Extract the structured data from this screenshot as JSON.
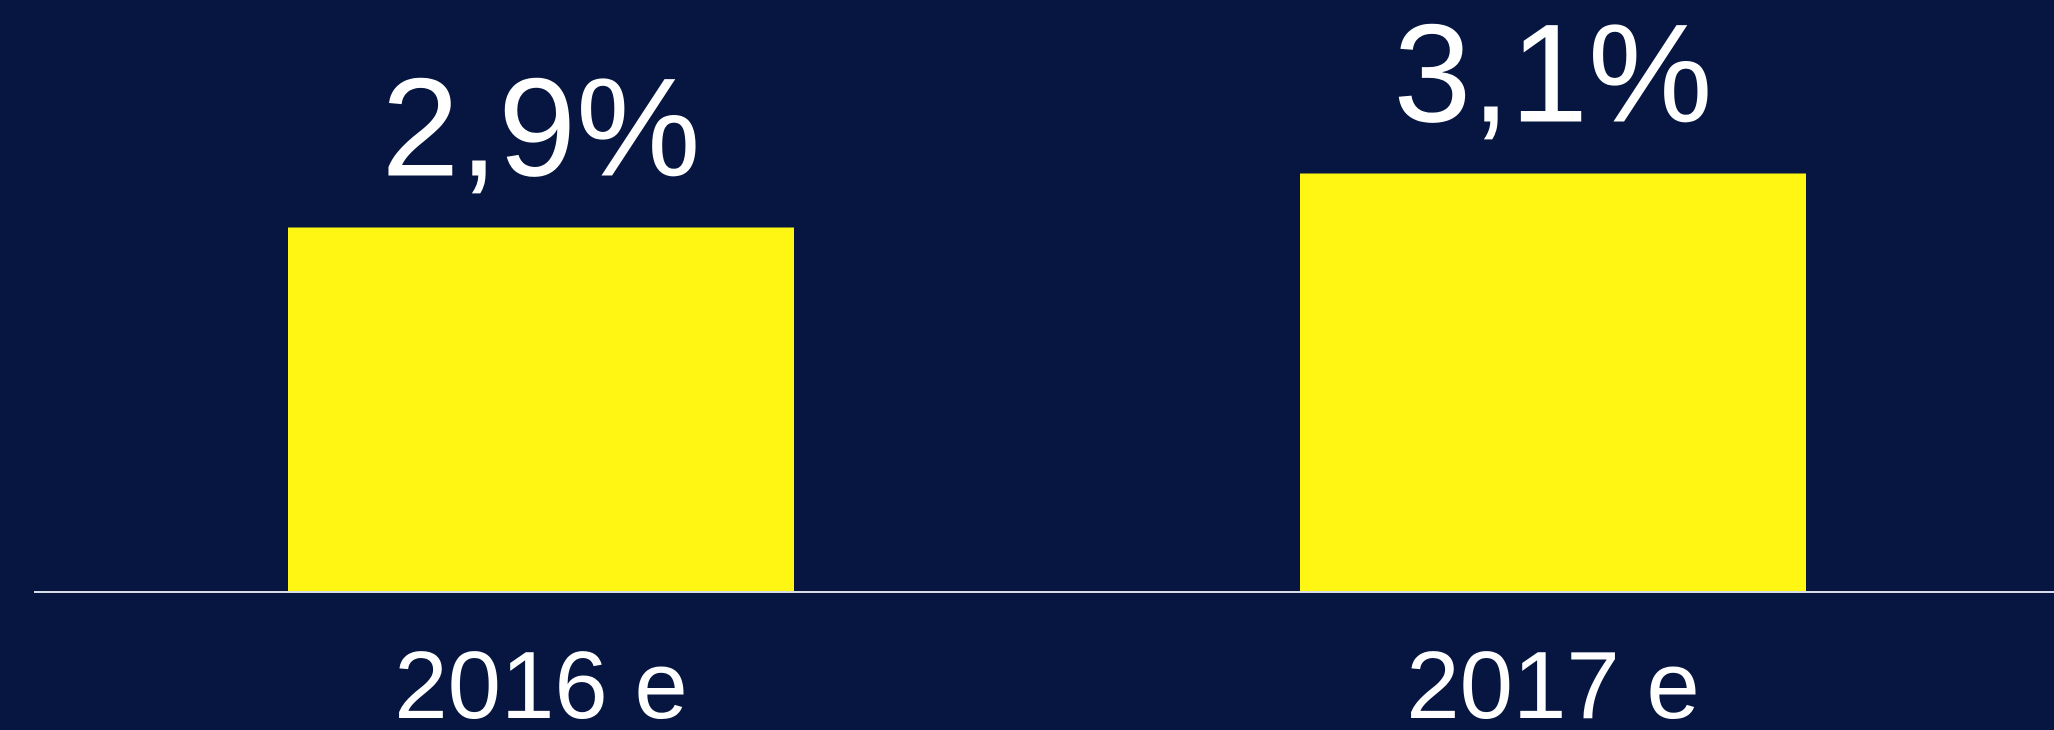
{
  "chart_data": {
    "type": "bar",
    "categories": [
      "2016 e",
      "2017 e"
    ],
    "values": [
      2.9,
      3.1
    ],
    "value_labels": [
      "2,9%",
      "3,1%"
    ],
    "color": "#fff614",
    "ylim": [
      1.55,
      3.5
    ]
  }
}
